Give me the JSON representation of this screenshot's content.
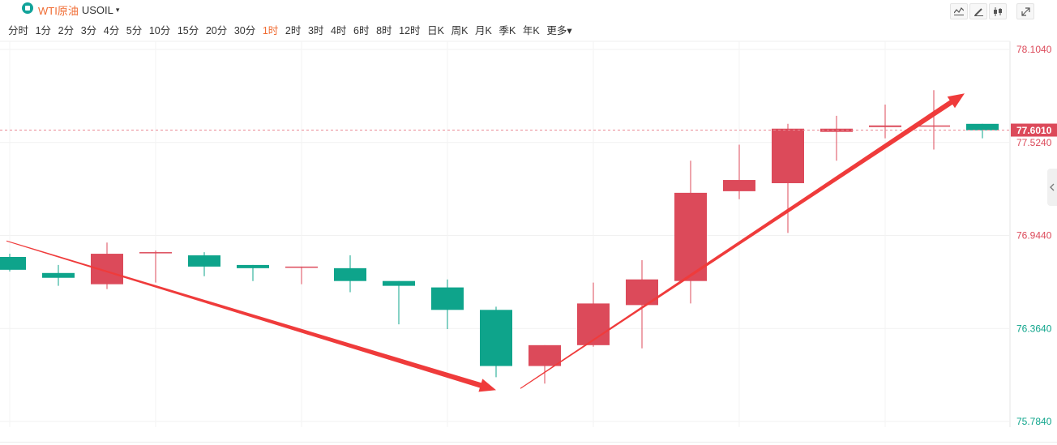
{
  "header": {
    "name": "WTI原油",
    "code": "USOIL",
    "caret": "▾",
    "periods": [
      "分时",
      "1分",
      "2分",
      "3分",
      "4分",
      "5分",
      "10分",
      "15分",
      "20分",
      "30分",
      "1时",
      "2时",
      "3时",
      "4时",
      "6时",
      "8时",
      "12时",
      "日K",
      "周K",
      "月K",
      "季K",
      "年K",
      "更多▾"
    ],
    "active_period": "1时"
  },
  "toolbar": {
    "icons": [
      "line-chart-icon",
      "pencil-icon",
      "candlestick-icon",
      "expand-icon"
    ]
  },
  "colors": {
    "up": "#dc4a5a",
    "down": "#0ea48b",
    "accent": "#f06b32",
    "arrow": "#ef3b3b"
  },
  "chart_data": {
    "type": "candlestick",
    "y_ticks": [
      "78.1040",
      "77.5240",
      "76.9440",
      "76.3640",
      "75.7840"
    ],
    "ylim": [
      75.784,
      78.104
    ],
    "last_price_label": "77.6010",
    "last_price": 77.601,
    "candles": [
      {
        "open": 76.81,
        "close": 76.73,
        "high": 76.83,
        "low": 76.72
      },
      {
        "open": 76.71,
        "close": 76.68,
        "high": 76.76,
        "low": 76.63
      },
      {
        "open": 76.64,
        "close": 76.83,
        "high": 76.9,
        "low": 76.61
      },
      {
        "open": 76.84,
        "close": 76.84,
        "high": 76.85,
        "low": 76.65
      },
      {
        "open": 76.82,
        "close": 76.75,
        "high": 76.84,
        "low": 76.69
      },
      {
        "open": 76.76,
        "close": 76.74,
        "high": 76.76,
        "low": 76.66
      },
      {
        "open": 76.75,
        "close": 76.75,
        "high": 76.75,
        "low": 76.64
      },
      {
        "open": 76.74,
        "close": 76.66,
        "high": 76.82,
        "low": 76.59
      },
      {
        "open": 76.66,
        "close": 76.63,
        "high": 76.66,
        "low": 76.39
      },
      {
        "open": 76.62,
        "close": 76.48,
        "high": 76.67,
        "low": 76.36
      },
      {
        "open": 76.48,
        "close": 76.13,
        "high": 76.5,
        "low": 76.06
      },
      {
        "open": 76.13,
        "close": 76.26,
        "high": 76.26,
        "low": 76.02
      },
      {
        "open": 76.26,
        "close": 76.52,
        "high": 76.65,
        "low": 76.25
      },
      {
        "open": 76.51,
        "close": 76.67,
        "high": 76.79,
        "low": 76.24
      },
      {
        "open": 76.66,
        "close": 77.21,
        "high": 77.41,
        "low": 76.52
      },
      {
        "open": 77.22,
        "close": 77.29,
        "high": 77.51,
        "low": 77.17
      },
      {
        "open": 77.27,
        "close": 77.61,
        "high": 77.64,
        "low": 76.96
      },
      {
        "open": 77.59,
        "close": 77.61,
        "high": 77.69,
        "low": 77.41
      },
      {
        "open": 77.62,
        "close": 77.63,
        "high": 77.76,
        "low": 77.55
      },
      {
        "open": 77.63,
        "close": 77.63,
        "high": 77.85,
        "low": 77.48
      },
      {
        "open": 77.64,
        "close": 77.6,
        "high": 77.64,
        "low": 77.55
      }
    ],
    "annotations": [
      {
        "type": "arrow",
        "from": {
          "candle": 0,
          "price": 76.91
        },
        "to": {
          "candle": 10,
          "price": 75.98
        }
      },
      {
        "type": "arrow",
        "from": {
          "candle": 10.5,
          "price": 75.99
        },
        "to": {
          "candle": 20,
          "price": 77.83
        }
      }
    ],
    "grid": true
  }
}
